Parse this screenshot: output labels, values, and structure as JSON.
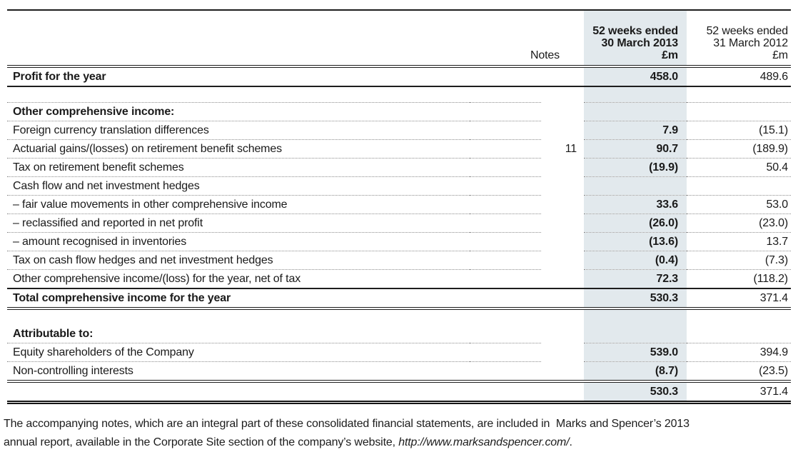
{
  "colors": {
    "highlight_column": "#e2e9ed"
  },
  "table": {
    "header": {
      "notes": "Notes",
      "col2013": [
        "52 weeks ended",
        "30 March 2013",
        "£m"
      ],
      "col2012": [
        "52 weeks ended",
        "31 March 2012",
        "£m"
      ]
    },
    "rows": {
      "profit": {
        "label": "Profit for the year",
        "v13": "458.0",
        "v12": "489.6"
      },
      "oci_header": {
        "label": "Other comprehensive income:"
      },
      "fx": {
        "label": "Foreign currency translation differences",
        "v13": "7.9",
        "v12": "(15.1)"
      },
      "actuarial": {
        "label": "Actuarial gains/(losses) on retirement benefit schemes",
        "notes": "11",
        "v13": "90.7",
        "v12": "(189.9)"
      },
      "tax_retirement": {
        "label": "Tax on retirement benefit schemes",
        "v13": "(19.9)",
        "v12": "50.4"
      },
      "hedges_header": {
        "label": "Cash flow and net investment hedges"
      },
      "fair_value": {
        "label": "– fair value movements in other comprehensive income",
        "v13": "33.6",
        "v12": "53.0"
      },
      "reclassified": {
        "label": "– reclassified and reported in net profit",
        "v13": "(26.0)",
        "v12": "(23.0)"
      },
      "inventories": {
        "label": "– amount recognised in inventories",
        "v13": "(13.6)",
        "v12": "13.7"
      },
      "tax_hedges": {
        "label": "Tax on cash flow hedges and net investment hedges",
        "v13": "(0.4)",
        "v12": "(7.3)"
      },
      "oci_net": {
        "label": "Other comprehensive income/(loss) for the year, net of tax",
        "v13": "72.3",
        "v12": "(118.2)"
      },
      "total": {
        "label": "Total comprehensive income for the year",
        "v13": "530.3",
        "v12": "371.4"
      },
      "attributable": {
        "label": "Attributable to:"
      },
      "equity": {
        "label": "Equity shareholders of the Company",
        "v13": "539.0",
        "v12": "394.9"
      },
      "minority": {
        "label": "Non-controlling interests",
        "v13": "(8.7)",
        "v12": "(23.5)"
      },
      "grand": {
        "v13": "530.3",
        "v12": "371.4"
      }
    }
  },
  "footnote": {
    "line1": "The accompanying notes, which are an integral part of these consolidated financial statements, are included in  Marks and Spencer’s 2013",
    "line2_before_link": "annual report, available in the Corporate Site section of the company’s website, ",
    "link": "http://www.marksandspencer.com/",
    "line2_after_link": "."
  }
}
